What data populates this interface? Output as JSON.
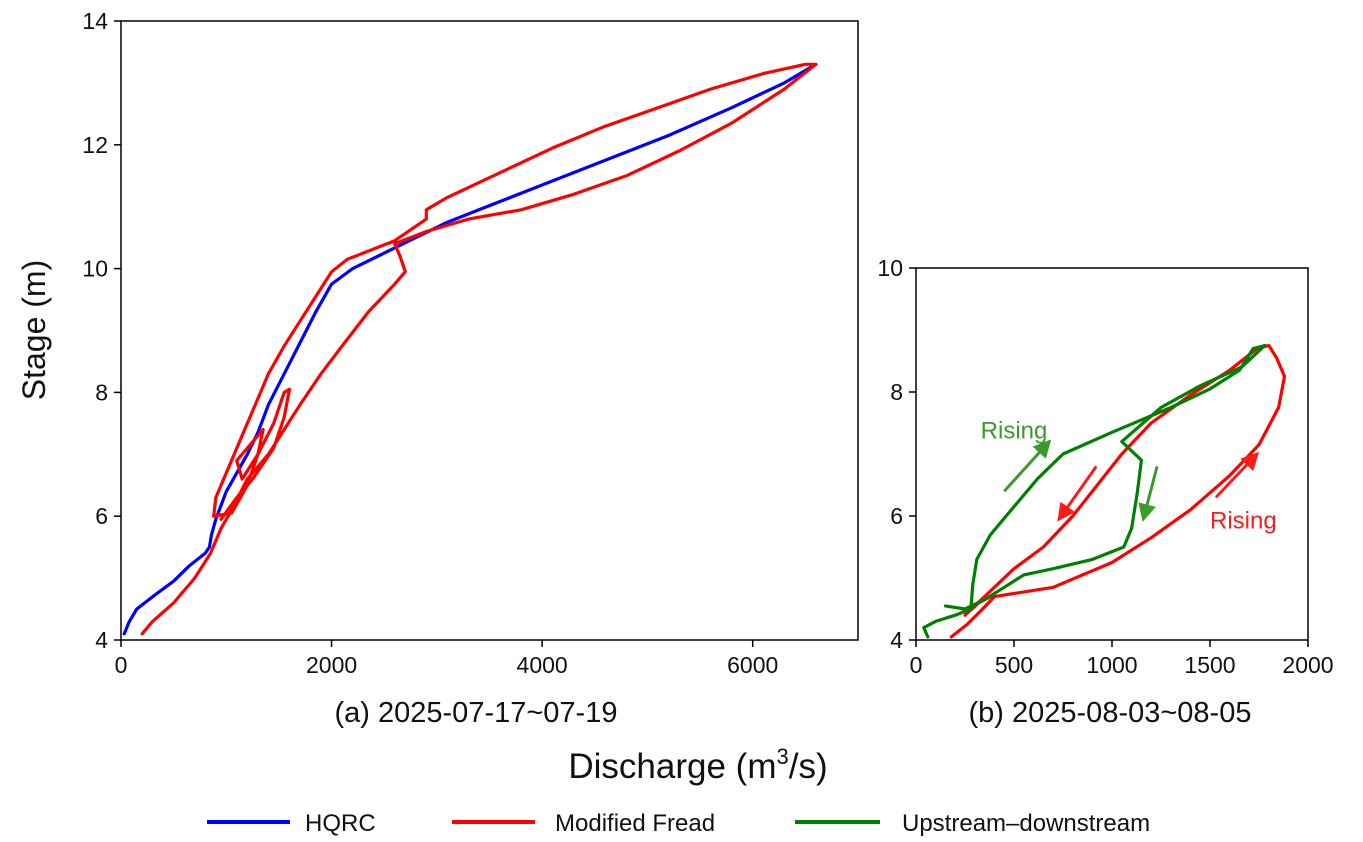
{
  "figure": {
    "ylabel": "Stage (m)",
    "xlabel_main": "Discharge (m",
    "xlabel_sup": "3",
    "xlabel_tail": "/s)"
  },
  "legend": [
    {
      "label": "HQRC",
      "color": "#0000ff"
    },
    {
      "label": "Modified Fread",
      "color": "#ff0000"
    },
    {
      "label": "Upstream–downstream",
      "color": "#008000"
    }
  ],
  "chart_data": [
    {
      "type": "line",
      "subplot_caption": "(a) 2025-07-17~07-19",
      "xlim": [
        0,
        7000
      ],
      "ylim": [
        4,
        14
      ],
      "xticks": [
        0,
        2000,
        4000,
        6000
      ],
      "yticks": [
        4,
        6,
        8,
        10,
        12,
        14
      ],
      "grid": false,
      "series": [
        {
          "name": "HQRC",
          "color": "#0000ff",
          "points": [
            [
              30,
              4.1
            ],
            [
              80,
              4.3
            ],
            [
              150,
              4.5
            ],
            [
              300,
              4.7
            ],
            [
              500,
              4.95
            ],
            [
              650,
              5.2
            ],
            [
              800,
              5.4
            ],
            [
              840,
              5.5
            ],
            [
              860,
              5.7
            ],
            [
              900,
              5.95
            ],
            [
              1000,
              6.4
            ],
            [
              1100,
              6.7
            ],
            [
              1200,
              7.0
            ],
            [
              1300,
              7.35
            ],
            [
              1400,
              7.8
            ],
            [
              1550,
              8.3
            ],
            [
              1700,
              8.8
            ],
            [
              1850,
              9.3
            ],
            [
              2000,
              9.75
            ],
            [
              2200,
              10.0
            ],
            [
              2500,
              10.25
            ],
            [
              2800,
              10.5
            ],
            [
              3100,
              10.75
            ],
            [
              3400,
              10.95
            ],
            [
              4000,
              11.35
            ],
            [
              4600,
              11.75
            ],
            [
              5200,
              12.15
            ],
            [
              5800,
              12.6
            ],
            [
              6300,
              13.0
            ],
            [
              6600,
              13.3
            ]
          ]
        },
        {
          "name": "Modified Fread",
          "color": "#ff0000",
          "points": [
            [
              200,
              4.1
            ],
            [
              300,
              4.3
            ],
            [
              500,
              4.6
            ],
            [
              700,
              5.0
            ],
            [
              850,
              5.4
            ],
            [
              950,
              5.8
            ],
            [
              1050,
              6.1
            ],
            [
              1200,
              6.6
            ],
            [
              1400,
              7.0
            ],
            [
              1550,
              7.4
            ],
            [
              1700,
              7.8
            ],
            [
              1900,
              8.3
            ],
            [
              2100,
              8.75
            ],
            [
              2350,
              9.3
            ],
            [
              2600,
              9.75
            ],
            [
              2700,
              9.95
            ],
            [
              2650,
              10.2
            ],
            [
              2600,
              10.4
            ],
            [
              2900,
              10.6
            ],
            [
              3300,
              10.8
            ],
            [
              3800,
              10.95
            ],
            [
              4300,
              11.2
            ],
            [
              4800,
              11.5
            ],
            [
              5300,
              11.9
            ],
            [
              5800,
              12.35
            ],
            [
              6300,
              12.9
            ],
            [
              6600,
              13.3
            ],
            [
              6500,
              13.3
            ],
            [
              6100,
              13.15
            ],
            [
              5600,
              12.9
            ],
            [
              5100,
              12.6
            ],
            [
              4600,
              12.3
            ],
            [
              4100,
              11.95
            ],
            [
              3600,
              11.55
            ],
            [
              3100,
              11.15
            ],
            [
              2900,
              10.95
            ],
            [
              2900,
              10.8
            ],
            [
              2600,
              10.45
            ],
            [
              2300,
              10.25
            ],
            [
              2150,
              10.15
            ],
            [
              2000,
              9.95
            ],
            [
              1850,
              9.55
            ],
            [
              1700,
              9.15
            ],
            [
              1550,
              8.75
            ],
            [
              1400,
              8.3
            ],
            [
              1300,
              7.9
            ],
            [
              1200,
              7.5
            ],
            [
              1100,
              7.1
            ],
            [
              1000,
              6.7
            ],
            [
              900,
              6.3
            ],
            [
              880,
              6.0
            ],
            [
              1050,
              6.05
            ],
            [
              1200,
              6.5
            ],
            [
              1300,
              7.0
            ],
            [
              1350,
              7.4
            ],
            [
              1200,
              7.1
            ],
            [
              1100,
              6.9
            ],
            [
              1150,
              6.6
            ],
            [
              1300,
              7.0
            ],
            [
              1450,
              7.5
            ],
            [
              1550,
              8.0
            ],
            [
              1600,
              8.05
            ],
            [
              1550,
              7.6
            ],
            [
              1450,
              7.1
            ],
            [
              1250,
              6.6
            ],
            [
              1100,
              6.3
            ],
            [
              950,
              5.95
            ]
          ]
        }
      ]
    },
    {
      "type": "line",
      "subplot_caption": "(b) 2025-08-03~08-05",
      "xlim": [
        0,
        2000
      ],
      "ylim": [
        4,
        10
      ],
      "xticks": [
        0,
        500,
        1000,
        1500,
        2000
      ],
      "yticks": [
        4,
        6,
        8,
        10
      ],
      "grid": false,
      "annotations": [
        {
          "text": "Rising",
          "color": "#3c9a2a",
          "x": 330,
          "y": 7.25
        },
        {
          "text": "Rising",
          "color": "#ff1a1a",
          "x": 1500,
          "y": 5.8
        }
      ],
      "arrows": [
        {
          "color": "#3c9a2a",
          "from": [
            450,
            6.4
          ],
          "to": [
            680,
            7.2
          ]
        },
        {
          "color": "#3c9a2a",
          "from": [
            1230,
            6.8
          ],
          "to": [
            1160,
            5.95
          ]
        },
        {
          "color": "#ff1a1a",
          "from": [
            920,
            6.8
          ],
          "to": [
            730,
            5.95
          ]
        },
        {
          "color": "#ff1a1a",
          "from": [
            1530,
            6.3
          ],
          "to": [
            1740,
            7.0
          ]
        }
      ],
      "series": [
        {
          "name": "Modified Fread",
          "color": "#ff0000",
          "points": [
            [
              180,
              4.05
            ],
            [
              260,
              4.25
            ],
            [
              340,
              4.5
            ],
            [
              400,
              4.7
            ],
            [
              700,
              4.85
            ],
            [
              1000,
              5.25
            ],
            [
              1200,
              5.65
            ],
            [
              1400,
              6.1
            ],
            [
              1600,
              6.65
            ],
            [
              1750,
              7.15
            ],
            [
              1850,
              7.75
            ],
            [
              1880,
              8.25
            ],
            [
              1840,
              8.55
            ],
            [
              1800,
              8.75
            ],
            [
              1740,
              8.7
            ],
            [
              1600,
              8.35
            ],
            [
              1400,
              7.95
            ],
            [
              1200,
              7.5
            ],
            [
              1050,
              7.0
            ],
            [
              900,
              6.4
            ],
            [
              800,
              6.0
            ],
            [
              650,
              5.5
            ],
            [
              500,
              5.15
            ],
            [
              400,
              4.85
            ],
            [
              300,
              4.55
            ],
            [
              250,
              4.4
            ],
            [
              320,
              4.6
            ],
            [
              380,
              4.7
            ]
          ]
        },
        {
          "name": "Upstream–downstream",
          "color": "#008000",
          "points": [
            [
              60,
              4.05
            ],
            [
              40,
              4.2
            ],
            [
              100,
              4.3
            ],
            [
              200,
              4.4
            ],
            [
              280,
              4.5
            ],
            [
              290,
              4.9
            ],
            [
              310,
              5.3
            ],
            [
              380,
              5.7
            ],
            [
              500,
              6.15
            ],
            [
              620,
              6.6
            ],
            [
              750,
              7.0
            ],
            [
              1000,
              7.35
            ],
            [
              1300,
              7.75
            ],
            [
              1500,
              8.05
            ],
            [
              1650,
              8.35
            ],
            [
              1720,
              8.7
            ],
            [
              1780,
              8.75
            ],
            [
              1660,
              8.4
            ],
            [
              1450,
              8.1
            ],
            [
              1250,
              7.75
            ],
            [
              1050,
              7.2
            ],
            [
              1150,
              6.9
            ],
            [
              1130,
              6.4
            ],
            [
              1100,
              5.8
            ],
            [
              1060,
              5.5
            ],
            [
              900,
              5.3
            ],
            [
              700,
              5.15
            ],
            [
              550,
              5.05
            ],
            [
              450,
              4.85
            ],
            [
              350,
              4.65
            ],
            [
              250,
              4.5
            ],
            [
              150,
              4.55
            ]
          ]
        }
      ]
    }
  ]
}
